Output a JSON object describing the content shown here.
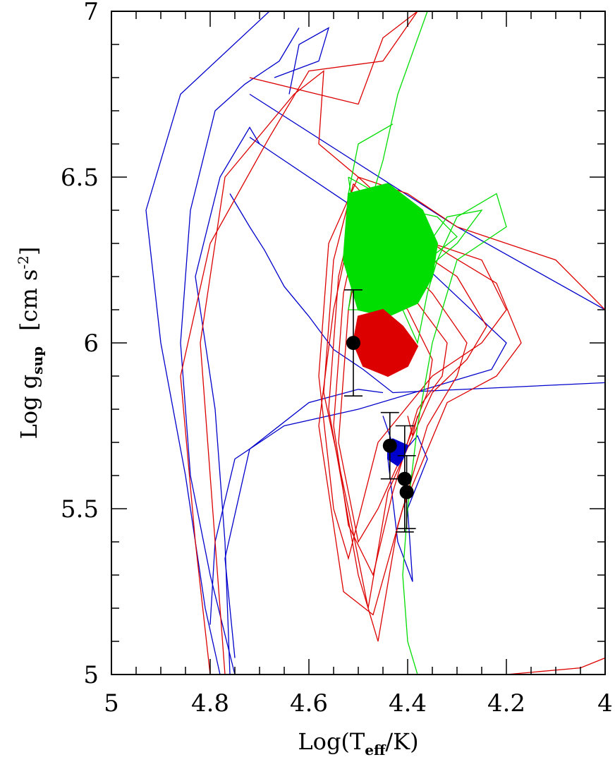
{
  "chart_data": {
    "type": "scatter",
    "xlabel_main": "Log(T",
    "xlabel_sub": "eff",
    "xlabel_tail": "/K)",
    "ylabel_main": "Log  g",
    "ylabel_sub": "sup",
    "ylabel_unit": "[cm s",
    "ylabel_exp": "-2",
    "ylabel_close": "]",
    "xlim": [
      5,
      4
    ],
    "ylim": [
      5,
      7
    ],
    "x_ticks": [
      5,
      4.8,
      4.6,
      4.4,
      4.2,
      4
    ],
    "x_tick_labels": [
      "5",
      "4.8",
      "4.6",
      "4.4",
      "4.2",
      "4"
    ],
    "y_ticks": [
      5,
      5.5,
      6,
      6.5,
      7
    ],
    "y_tick_labels": [
      "5",
      "5.5",
      "6",
      "6.5",
      "7"
    ],
    "colors": {
      "blue": "#0000cc",
      "red": "#dd0000",
      "green": "#00dd00",
      "points": "#000000"
    },
    "observations": [
      {
        "x": 4.51,
        "y": 6.0,
        "yerr_up": 0.16,
        "yerr_down": 0.16
      },
      {
        "x": 4.436,
        "y": 5.69,
        "yerr_up": 0.1,
        "yerr_down": 0.1
      },
      {
        "x": 4.406,
        "y": 5.59,
        "yerr_up": 0.16,
        "yerr_down": 0.16
      },
      {
        "x": 4.402,
        "y": 5.55,
        "yerr_up": 0.11,
        "yerr_down": 0.11
      }
    ],
    "tracks": [
      {
        "color": "blue",
        "points": [
          [
            4.68,
            7.0
          ],
          [
            4.86,
            6.75
          ],
          [
            4.93,
            6.4
          ],
          [
            4.9,
            6.0
          ],
          [
            4.85,
            5.6
          ],
          [
            4.81,
            5.2
          ],
          [
            4.78,
            5.0
          ]
        ]
      },
      {
        "color": "blue",
        "points": [
          [
            4.75,
            5.0
          ],
          [
            4.8,
            5.3
          ],
          [
            4.84,
            5.6
          ],
          [
            4.86,
            6.0
          ],
          [
            4.84,
            6.4
          ],
          [
            4.79,
            6.7
          ],
          [
            4.73,
            6.78
          ],
          [
            4.66,
            6.85
          ],
          [
            4.62,
            6.95
          ]
        ]
      },
      {
        "color": "blue",
        "points": [
          [
            4.76,
            5.0
          ],
          [
            4.77,
            5.4
          ],
          [
            4.79,
            5.8
          ],
          [
            4.83,
            6.2
          ],
          [
            4.78,
            6.5
          ],
          [
            4.72,
            6.65
          ],
          [
            4.7,
            6.6
          ]
        ]
      },
      {
        "color": "blue",
        "points": [
          [
            4.72,
            6.75
          ],
          [
            4.3,
            6.35
          ],
          [
            4.0,
            6.1
          ]
        ]
      },
      {
        "color": "blue",
        "points": [
          [
            4.72,
            6.62
          ],
          [
            4.45,
            6.35
          ],
          [
            4.2,
            6.0
          ],
          [
            4.23,
            5.92
          ],
          [
            4.5,
            5.8
          ],
          [
            4.65,
            5.75
          ],
          [
            4.75,
            5.65
          ],
          [
            4.79,
            5.4
          ],
          [
            4.8,
            5.15
          ]
        ]
      },
      {
        "color": "blue",
        "points": [
          [
            4.76,
            6.45
          ],
          [
            4.72,
            6.35
          ],
          [
            4.69,
            6.28
          ],
          [
            4.65,
            6.17
          ],
          [
            4.6,
            6.08
          ],
          [
            4.55,
            5.98
          ],
          [
            4.49,
            5.92
          ],
          [
            4.43,
            5.85
          ],
          [
            4.0,
            5.88
          ]
        ]
      },
      {
        "color": "blue",
        "points": [
          [
            4.75,
            5.05
          ],
          [
            4.77,
            5.35
          ],
          [
            4.72,
            5.68
          ],
          [
            4.6,
            5.82
          ],
          [
            4.5,
            5.86
          ],
          [
            4.45,
            5.85
          ]
        ]
      },
      {
        "color": "blue",
        "points": [
          [
            4.64,
            6.75
          ],
          [
            4.62,
            6.9
          ],
          [
            4.56,
            6.95
          ],
          [
            4.58,
            6.85
          ],
          [
            4.67,
            6.8
          ]
        ]
      },
      {
        "color": "blue",
        "points": [
          [
            4.45,
            5.78
          ],
          [
            4.42,
            5.65
          ],
          [
            4.38,
            5.72
          ],
          [
            4.36,
            5.65
          ],
          [
            4.4,
            5.5
          ],
          [
            4.39,
            5.28
          ],
          [
            4.42,
            5.4
          ],
          [
            4.44,
            5.65
          ]
        ]
      },
      {
        "color": "red",
        "points": [
          [
            4.8,
            5.0
          ],
          [
            4.83,
            5.4
          ],
          [
            4.86,
            5.9
          ],
          [
            4.8,
            6.3
          ],
          [
            4.68,
            6.62
          ],
          [
            4.6,
            6.82
          ],
          [
            4.45,
            6.85
          ],
          [
            4.38,
            7.0
          ]
        ]
      },
      {
        "color": "red",
        "points": [
          [
            4.77,
            5.0
          ],
          [
            4.79,
            5.4
          ],
          [
            4.82,
            6.0
          ],
          [
            4.77,
            6.5
          ],
          [
            4.63,
            6.75
          ],
          [
            4.57,
            6.82
          ],
          [
            4.58,
            6.6
          ],
          [
            4.5,
            6.5
          ],
          [
            4.4,
            6.45
          ],
          [
            4.3,
            6.35
          ],
          [
            4.1,
            6.25
          ],
          [
            4.0,
            6.1
          ]
        ]
      },
      {
        "color": "red",
        "points": [
          [
            4.72,
            6.8
          ],
          [
            4.5,
            6.72
          ],
          [
            4.45,
            6.92
          ],
          [
            4.38,
            7.0
          ]
        ]
      },
      {
        "color": "red",
        "points": [
          [
            4.5,
            6.5
          ],
          [
            4.56,
            6.3
          ],
          [
            4.58,
            5.9
          ],
          [
            4.55,
            5.5
          ],
          [
            4.52,
            5.35
          ],
          [
            4.46,
            5.7
          ],
          [
            4.35,
            5.9
          ],
          [
            4.25,
            6.0
          ],
          [
            4.2,
            6.1
          ],
          [
            4.25,
            6.25
          ],
          [
            4.35,
            6.3
          ],
          [
            4.5,
            6.5
          ]
        ]
      },
      {
        "color": "red",
        "points": [
          [
            4.51,
            6.48
          ],
          [
            4.55,
            6.25
          ],
          [
            4.57,
            5.85
          ],
          [
            4.52,
            5.5
          ],
          [
            4.48,
            5.2
          ],
          [
            4.44,
            5.55
          ],
          [
            4.35,
            5.85
          ],
          [
            4.28,
            5.95
          ],
          [
            4.24,
            6.05
          ],
          [
            4.3,
            6.2
          ],
          [
            4.4,
            6.3
          ],
          [
            4.51,
            6.48
          ]
        ]
      },
      {
        "color": "red",
        "points": [
          [
            4.5,
            6.45
          ],
          [
            4.54,
            6.2
          ],
          [
            4.56,
            5.8
          ],
          [
            4.5,
            5.3
          ],
          [
            4.46,
            5.1
          ],
          [
            4.42,
            5.45
          ],
          [
            4.36,
            5.75
          ],
          [
            4.3,
            5.9
          ],
          [
            4.28,
            6.0
          ],
          [
            4.35,
            6.15
          ],
          [
            4.45,
            6.3
          ],
          [
            4.5,
            6.45
          ]
        ]
      },
      {
        "color": "red",
        "points": [
          [
            4.49,
            6.42
          ],
          [
            4.53,
            6.15
          ],
          [
            4.55,
            5.75
          ],
          [
            4.52,
            5.45
          ],
          [
            4.47,
            5.3
          ],
          [
            4.43,
            5.55
          ],
          [
            4.38,
            5.8
          ],
          [
            4.33,
            5.9
          ],
          [
            4.32,
            6.0
          ],
          [
            4.38,
            6.12
          ],
          [
            4.45,
            6.25
          ],
          [
            4.49,
            6.42
          ]
        ]
      },
      {
        "color": "red",
        "points": [
          [
            4.48,
            6.4
          ],
          [
            4.52,
            6.1
          ],
          [
            4.54,
            5.7
          ],
          [
            4.5,
            5.4
          ],
          [
            4.46,
            5.5
          ],
          [
            4.4,
            5.7
          ],
          [
            4.36,
            5.85
          ],
          [
            4.35,
            5.95
          ],
          [
            4.4,
            6.1
          ],
          [
            4.46,
            6.2
          ],
          [
            4.48,
            6.4
          ]
        ]
      },
      {
        "color": "red",
        "points": [
          [
            4.5,
            6.45
          ],
          [
            4.55,
            6.1
          ],
          [
            4.58,
            5.75
          ],
          [
            4.53,
            5.25
          ],
          [
            4.47,
            5.18
          ],
          [
            4.41,
            5.5
          ],
          [
            4.32,
            5.82
          ],
          [
            4.22,
            5.9
          ],
          [
            4.17,
            6.0
          ],
          [
            4.22,
            6.18
          ],
          [
            4.32,
            6.27
          ],
          [
            4.5,
            6.45
          ]
        ]
      },
      {
        "color": "red",
        "points": [
          [
            4.4,
            5.78
          ],
          [
            4.39,
            5.72
          ],
          [
            4.38,
            5.78
          ]
        ]
      },
      {
        "color": "red",
        "points": [
          [
            4.2,
            5.0
          ],
          [
            4.05,
            5.02
          ],
          [
            4.0,
            5.05
          ]
        ]
      },
      {
        "color": "green",
        "points": [
          [
            4.36,
            7.0
          ],
          [
            4.42,
            6.75
          ],
          [
            4.45,
            6.55
          ],
          [
            4.5,
            6.3
          ],
          [
            4.52,
            6.1
          ],
          [
            4.46,
            6.1
          ],
          [
            4.43,
            6.25
          ],
          [
            4.41,
            6.1
          ],
          [
            4.38,
            6.0
          ],
          [
            4.36,
            6.15
          ],
          [
            4.34,
            6.25
          ],
          [
            4.3,
            6.38
          ],
          [
            4.22,
            6.45
          ],
          [
            4.2,
            6.35
          ],
          [
            4.3,
            6.25
          ],
          [
            4.35,
            6.0
          ],
          [
            4.38,
            5.75
          ],
          [
            4.4,
            5.5
          ],
          [
            4.41,
            5.3
          ],
          [
            4.4,
            5.1
          ],
          [
            4.38,
            5.0
          ]
        ]
      },
      {
        "color": "green",
        "points": [
          [
            4.43,
            6.66
          ],
          [
            4.5,
            6.6
          ],
          [
            4.52,
            6.45
          ],
          [
            4.5,
            6.3
          ],
          [
            4.45,
            6.2
          ],
          [
            4.38,
            6.25
          ],
          [
            4.32,
            6.38
          ],
          [
            4.25,
            6.4
          ],
          [
            4.3,
            6.3
          ],
          [
            4.38,
            6.2
          ]
        ]
      },
      {
        "color": "green",
        "points": [
          [
            4.52,
            6.5
          ],
          [
            4.46,
            6.45
          ],
          [
            4.4,
            6.4
          ],
          [
            4.34,
            6.38
          ],
          [
            4.3,
            6.32
          ],
          [
            4.36,
            6.25
          ],
          [
            4.44,
            6.2
          ],
          [
            4.5,
            6.3
          ],
          [
            4.52,
            6.5
          ]
        ]
      }
    ],
    "blobs": [
      {
        "color": "green",
        "points": [
          [
            4.52,
            6.45
          ],
          [
            4.44,
            6.48
          ],
          [
            4.37,
            6.4
          ],
          [
            4.34,
            6.3
          ],
          [
            4.35,
            6.2
          ],
          [
            4.38,
            6.12
          ],
          [
            4.44,
            6.08
          ],
          [
            4.5,
            6.1
          ],
          [
            4.53,
            6.25
          ]
        ]
      },
      {
        "color": "red",
        "points": [
          [
            4.5,
            6.08
          ],
          [
            4.45,
            6.1
          ],
          [
            4.41,
            6.05
          ],
          [
            4.38,
            5.99
          ],
          [
            4.4,
            5.93
          ],
          [
            4.44,
            5.9
          ],
          [
            4.49,
            5.93
          ],
          [
            4.51,
            6.0
          ]
        ]
      },
      {
        "color": "blue",
        "points": [
          [
            4.43,
            5.71
          ],
          [
            4.4,
            5.69
          ],
          [
            4.41,
            5.65
          ],
          [
            4.42,
            5.63
          ],
          [
            4.44,
            5.65
          ],
          [
            4.44,
            5.69
          ]
        ]
      }
    ]
  }
}
